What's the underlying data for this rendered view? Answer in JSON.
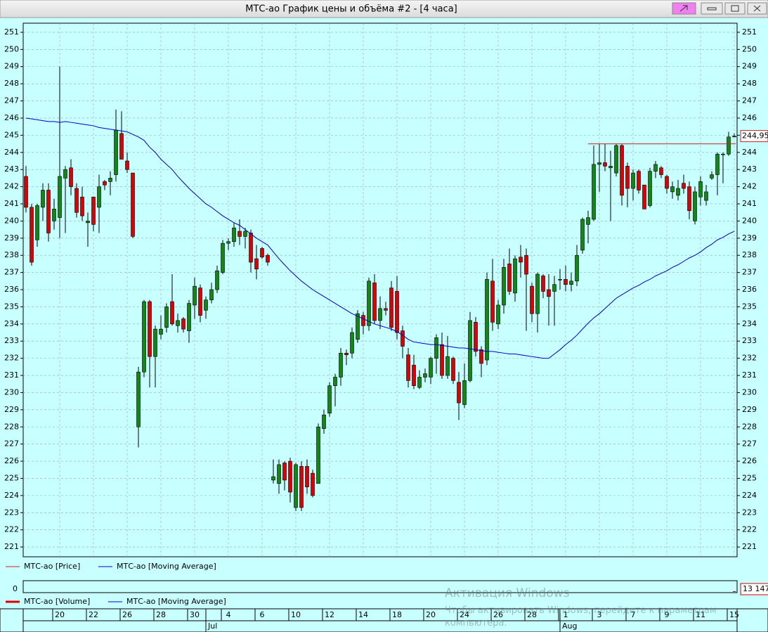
{
  "window": {
    "title": "МТС-ао График цены и объёма #2 - [4 часа]"
  },
  "chart_data": [
    {
      "type": "candlestick",
      "categories": [
        null,
        null,
        null,
        null,
        null,
        null,
        "20",
        null,
        null,
        null,
        null,
        null,
        "22",
        null,
        null,
        null,
        null,
        null,
        "26",
        null,
        null,
        null,
        null,
        null,
        "28",
        null,
        null,
        null,
        null,
        null,
        "30",
        null,
        null,
        null,
        null,
        null,
        "4",
        null,
        null,
        null,
        null,
        null,
        "6",
        null,
        null,
        null,
        null,
        null,
        "10",
        null,
        null,
        null,
        null,
        null,
        "12",
        null,
        null,
        null,
        null,
        null,
        "14",
        null,
        null,
        null,
        null,
        null,
        "18",
        null,
        null,
        null,
        null,
        null,
        "20",
        null,
        null,
        null,
        null,
        null,
        "24",
        null,
        null,
        null,
        null,
        null,
        "26",
        null,
        null,
        null,
        null,
        null,
        "28",
        null,
        null,
        null,
        null,
        null,
        "1",
        null,
        null,
        null,
        null,
        null,
        "3",
        null,
        null,
        null,
        null,
        null,
        "7",
        null,
        null,
        null,
        null,
        null,
        "9",
        null,
        null,
        null,
        null,
        null,
        "11",
        null,
        null,
        null,
        null,
        null,
        "15"
      ],
      "months": [
        null,
        null,
        null,
        null,
        null,
        null,
        null,
        null,
        null,
        null,
        null,
        null,
        null,
        null,
        null,
        null,
        null,
        null,
        null,
        null,
        null,
        null,
        null,
        null,
        null,
        null,
        null,
        null,
        null,
        null,
        null,
        null,
        "Jul",
        null,
        null,
        null,
        null,
        null,
        null,
        null,
        null,
        null,
        null,
        null,
        null,
        null,
        null,
        null,
        null,
        null,
        null,
        null,
        null,
        null,
        null,
        null,
        null,
        null,
        null,
        null,
        null,
        null,
        null,
        null,
        null,
        null,
        null,
        null,
        null,
        null,
        null,
        null,
        null,
        null,
        null,
        null,
        null,
        null,
        null,
        null,
        null,
        null,
        null,
        null,
        null,
        null,
        null,
        null,
        null,
        null,
        null,
        null,
        null,
        null,
        null,
        "Aug",
        null,
        null,
        null,
        null,
        null,
        null,
        null,
        null,
        null,
        null,
        null,
        null,
        null,
        null,
        null,
        null,
        null,
        null,
        null,
        null,
        null,
        null,
        null,
        null,
        null,
        null,
        null,
        null,
        null,
        null,
        null
      ],
      "series": [
        {
          "name": "МТС-ао [Price]",
          "color": "#d02020",
          "up_color": "#118811",
          "down_color": "#dd0000",
          "open": [
            242.6,
            240.8,
            238.9,
            240.8,
            241.8,
            240.0,
            240.2,
            242.5,
            243.1,
            241.9,
            241.4,
            239.9,
            241.4,
            240.8,
            242.3,
            242.3,
            242.7,
            245.1,
            243.5,
            242.8,
            228.0,
            231.2,
            235.3,
            232.1,
            233.4,
            233.8,
            235.3,
            233.9,
            234.3,
            233.6,
            235.1,
            236.1,
            234.8,
            235.4,
            236.0,
            237.0,
            238.7,
            238.8,
            239.4,
            239.1,
            239.3,
            237.8,
            238.4,
            238.0,
            224.9,
            224.7,
            225.9,
            226.0,
            223.3,
            225.7,
            225.7,
            225.3,
            224.7,
            227.9,
            228.8,
            230.4,
            230.9,
            232.3,
            232.3,
            233.1,
            234.5,
            233.9,
            236.4,
            234.2,
            234.9,
            236.1,
            235.9,
            233.6,
            232.2,
            231.6,
            230.3,
            230.9,
            230.9,
            232.0,
            232.8,
            231.0,
            232.0,
            230.6,
            229.3,
            230.7,
            234.1,
            232.5,
            231.9,
            236.5,
            234.0,
            235.1,
            237.5,
            235.8,
            237.9,
            238.0,
            236.2,
            234.6,
            236.8,
            236.0,
            235.9,
            236.6,
            236.6,
            236.3,
            236.5,
            238.3,
            239.8,
            240.1,
            243.3,
            243.4,
            243.1,
            242.8,
            244.4,
            243.2,
            241.9,
            242.9,
            242.1,
            240.9,
            242.9,
            243.1,
            242.6,
            241.7,
            241.5,
            242.2,
            242.0,
            240.0,
            241.4,
            241.2,
            242.5,
            242.7,
            243.9,
            243.9,
            244.9
          ],
          "high": [
            243.2,
            241.0,
            241.0,
            242.2,
            242.2,
            241.3,
            249.0,
            243.2,
            243.6,
            242.2,
            242.0,
            240.5,
            241.4,
            242.7,
            242.4,
            242.9,
            246.5,
            246.4,
            244.0,
            242.8,
            231.5,
            235.4,
            235.4,
            233.9,
            234.5,
            235.2,
            236.9,
            234.6,
            234.4,
            235.4,
            236.7,
            236.3,
            235.6,
            236.4,
            237.4,
            238.9,
            239.0,
            239.9,
            240.1,
            239.6,
            239.5,
            238.6,
            238.5,
            238.1,
            226.1,
            226.1,
            226.0,
            226.2,
            225.9,
            226.0,
            226.1,
            225.5,
            228.2,
            229.0,
            230.6,
            231.1,
            232.6,
            232.5,
            233.8,
            234.8,
            234.7,
            236.7,
            236.9,
            235.6,
            235.3,
            236.5,
            236.8,
            233.9,
            232.6,
            232.2,
            231.3,
            231.4,
            232.1,
            233.4,
            233.5,
            233.3,
            232.1,
            231.2,
            231.7,
            234.7,
            234.4,
            232.7,
            237.0,
            237.8,
            235.4,
            237.8,
            238.4,
            238.0,
            238.6,
            238.4,
            236.4,
            237.0,
            236.9,
            236.9,
            236.8,
            237.2,
            237.4,
            237.0,
            238.6,
            240.2,
            240.6,
            244.4,
            244.5,
            244.5,
            244.1,
            244.5,
            244.5,
            243.4,
            243.0,
            243.0,
            242.1,
            243.1,
            243.5,
            243.2,
            242.7,
            242.3,
            242.4,
            242.7,
            242.3,
            242.0,
            242.6,
            242.1,
            242.9,
            244.0,
            244.0,
            245.2,
            245.1
          ],
          "low": [
            240.5,
            237.4,
            238.5,
            240.0,
            238.8,
            239.5,
            239.0,
            239.3,
            241.5,
            240.2,
            240.0,
            238.5,
            239.4,
            239.3,
            241.8,
            241.5,
            242.3,
            243.6,
            242.8,
            239.0,
            226.8,
            230.9,
            230.3,
            230.3,
            233.1,
            233.5,
            233.9,
            233.5,
            233.5,
            232.9,
            234.3,
            234.1,
            234.3,
            235.2,
            235.8,
            236.9,
            238.3,
            238.5,
            238.6,
            238.4,
            237.0,
            236.6,
            237.8,
            237.4,
            224.7,
            224.1,
            224.3,
            223.6,
            223.1,
            223.1,
            224.1,
            223.9,
            224.7,
            227.6,
            228.6,
            229.2,
            230.4,
            231.6,
            232.0,
            232.9,
            233.4,
            233.6,
            234.0,
            233.7,
            234.5,
            233.6,
            233.1,
            232.0,
            230.3,
            230.2,
            230.2,
            230.6,
            230.5,
            231.1,
            230.8,
            230.8,
            230.5,
            228.4,
            229.1,
            230.6,
            232.1,
            230.9,
            231.6,
            233.6,
            233.7,
            234.6,
            235.7,
            235.3,
            236.7,
            233.6,
            234.1,
            233.5,
            235.5,
            233.9,
            233.9,
            236.0,
            235.9,
            235.9,
            236.2,
            238.1,
            238.7,
            240.0,
            241.7,
            242.9,
            240.0,
            242.6,
            240.9,
            240.8,
            241.2,
            241.6,
            240.7,
            240.8,
            242.5,
            242.5,
            241.6,
            241.3,
            241.2,
            241.6,
            240.1,
            239.8,
            240.9,
            240.9,
            242.4,
            241.5,
            242.2,
            243.8,
            244.9
          ],
          "close": [
            240.8,
            237.6,
            240.9,
            241.8,
            239.3,
            240.7,
            242.6,
            243.0,
            242.0,
            240.5,
            240.3,
            240.0,
            239.8,
            242.0,
            242.1,
            242.5,
            245.3,
            243.6,
            243.0,
            239.1,
            231.2,
            235.3,
            232.1,
            233.7,
            233.7,
            235.0,
            234.0,
            234.2,
            233.7,
            235.2,
            236.2,
            234.5,
            235.4,
            236.0,
            237.1,
            238.7,
            238.8,
            239.6,
            239.1,
            239.4,
            237.6,
            237.2,
            237.9,
            237.6,
            225.1,
            225.8,
            224.9,
            224.2,
            225.8,
            223.3,
            224.5,
            224.0,
            228.0,
            228.7,
            230.4,
            230.9,
            232.3,
            232.2,
            233.5,
            234.6,
            233.9,
            236.5,
            234.2,
            234.9,
            234.8,
            233.8,
            233.5,
            232.7,
            230.7,
            230.4,
            230.9,
            231.1,
            232.0,
            233.2,
            231.0,
            232.1,
            230.7,
            229.4,
            230.7,
            234.2,
            232.4,
            231.7,
            236.6,
            234.1,
            235.1,
            237.3,
            235.9,
            237.8,
            237.6,
            236.9,
            234.6,
            236.9,
            235.9,
            235.6,
            236.3,
            236.6,
            236.3,
            236.5,
            238.0,
            240.1,
            240.2,
            243.3,
            243.4,
            243.2,
            243.2,
            244.4,
            241.5,
            241.9,
            242.8,
            241.8,
            240.7,
            242.9,
            243.3,
            242.7,
            241.9,
            242.0,
            241.9,
            241.9,
            240.6,
            241.7,
            242.3,
            241.7,
            242.7,
            243.9,
            243.9,
            244.9,
            244.95
          ]
        },
        {
          "name": "МТС-ао [Moving Average]",
          "color": "#0000cc",
          "values": [
            246.0,
            245.95,
            245.9,
            245.85,
            245.8,
            245.8,
            245.75,
            245.8,
            245.75,
            245.7,
            245.65,
            245.6,
            245.55,
            245.45,
            245.4,
            245.35,
            245.3,
            245.25,
            245.2,
            245.05,
            244.9,
            244.7,
            244.3,
            244.0,
            243.6,
            243.3,
            243.0,
            242.6,
            242.25,
            241.9,
            241.6,
            241.3,
            241.0,
            240.8,
            240.55,
            240.3,
            240.1,
            239.9,
            239.75,
            239.5,
            239.25,
            239.0,
            238.8,
            238.6,
            238.2,
            237.8,
            237.45,
            237.1,
            236.8,
            236.5,
            236.25,
            236.0,
            235.8,
            235.6,
            235.4,
            235.2,
            235.0,
            234.8,
            234.6,
            234.45,
            234.3,
            234.15,
            234.0,
            233.9,
            233.8,
            233.7,
            233.55,
            233.35,
            233.1,
            232.95,
            232.9,
            232.85,
            232.8,
            232.8,
            232.75,
            232.7,
            232.65,
            232.6,
            232.6,
            232.55,
            232.5,
            232.45,
            232.4,
            232.4,
            232.35,
            232.3,
            232.25,
            232.25,
            232.2,
            232.15,
            232.1,
            232.05,
            232.0,
            232.0,
            232.25,
            232.5,
            232.8,
            233.05,
            233.35,
            233.7,
            234.05,
            234.35,
            234.6,
            234.9,
            235.2,
            235.5,
            235.7,
            235.9,
            236.1,
            236.25,
            236.45,
            236.6,
            236.8,
            236.95,
            237.1,
            237.3,
            237.45,
            237.65,
            237.85,
            238.0,
            238.2,
            238.45,
            238.65,
            238.9,
            239.05,
            239.25,
            239.4
          ]
        }
      ],
      "level": 244.5,
      "last_value": {
        "value": 244.95,
        "label": "244,95"
      },
      "ylim": [
        220.43,
        251.53
      ],
      "yticks": [
        221,
        222,
        223,
        224,
        225,
        226,
        227,
        228,
        229,
        230,
        231,
        232,
        233,
        234,
        235,
        236,
        237,
        238,
        239,
        240,
        241,
        242,
        243,
        244,
        245,
        246,
        247,
        248,
        249,
        250,
        251
      ],
      "grid": true
    },
    {
      "type": "volume",
      "series": [
        {
          "name": "МТС-ао [Volume]",
          "color": "#dd0000"
        },
        {
          "name": "МТС-ао [Moving Average]",
          "color": "#0000cc"
        }
      ],
      "ylim": [
        0,
        200000
      ],
      "yticks": [
        0
      ],
      "last_value": {
        "value": 13147,
        "label": "13 147"
      }
    }
  ],
  "watermark": {
    "title": "Активация Windows",
    "text": "Чтобы активировать Windows, перейдите к параметрам компьютера."
  }
}
